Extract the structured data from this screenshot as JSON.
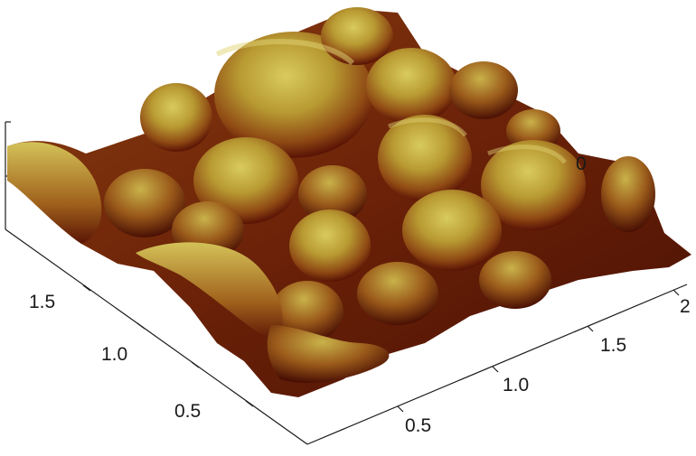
{
  "image": {
    "subject": "3D AFM-style surface topography render",
    "colors": {
      "background": "#ffffff",
      "surface_light": "#d7c85a",
      "surface_mid": "#a8661c",
      "surface_dark": "#5a1405",
      "axis_line": "#1a1a1a"
    }
  },
  "axes": {
    "left_axis": {
      "ticks": [
        "0.5",
        "1.0",
        "1.5"
      ]
    },
    "right_axis": {
      "ticks": [
        "0.5",
        "1.0",
        "1.5",
        "2"
      ]
    },
    "z_axis": {
      "ticks": [
        "",
        ""
      ]
    },
    "partial_label": "0"
  }
}
